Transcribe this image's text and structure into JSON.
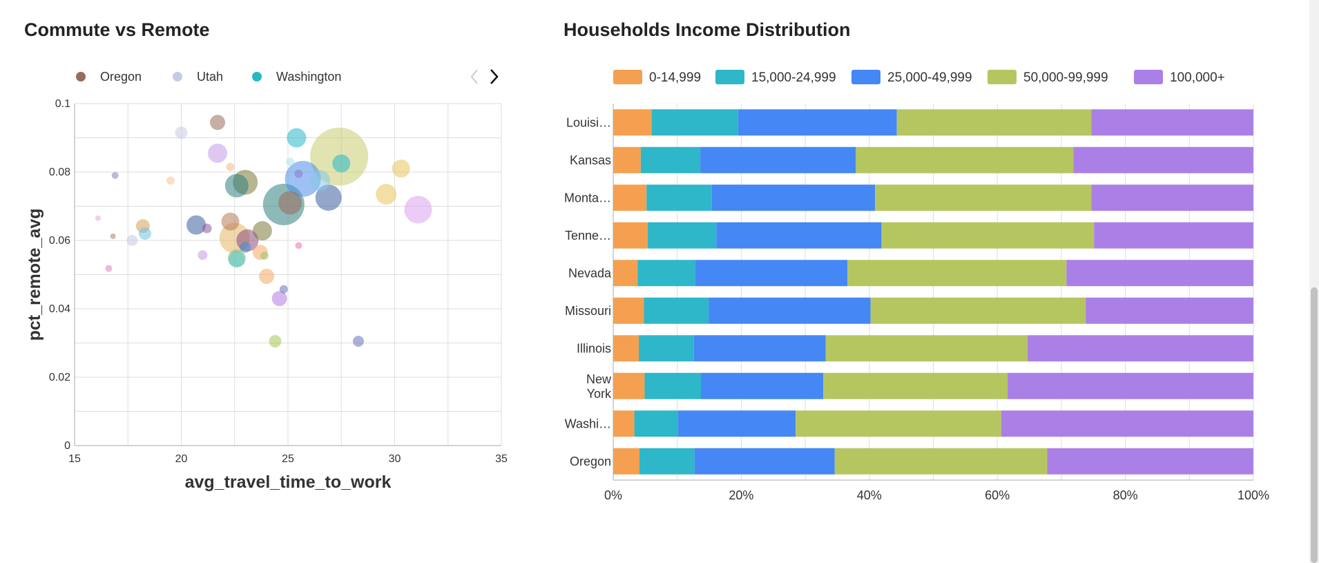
{
  "left_panel": {
    "title": "Commute vs Remote",
    "legend": [
      "Oregon",
      "Utah",
      "Washington"
    ],
    "legend_colors": [
      "#9a6b5a",
      "#c6cbe2",
      "#26b7c8"
    ],
    "legend_nav": {
      "prev_icon": "chevron-left-icon",
      "next_icon": "chevron-right-icon"
    }
  },
  "right_panel": {
    "title": "Households Income Distribution"
  },
  "chart_data": [
    {
      "type": "scatter",
      "title": "Commute vs Remote",
      "xlabel": "avg_travel_time_to_work",
      "ylabel": "pct_remote_avg",
      "xlim": [
        15,
        35
      ],
      "ylim": [
        0,
        0.1
      ],
      "x_ticks": [
        15,
        20,
        25,
        30,
        35
      ],
      "y_ticks": [
        0,
        0.02,
        0.04,
        0.06,
        0.08,
        0.1
      ],
      "y_tick_labels": [
        "0",
        "0.02",
        "0.04",
        "0.06",
        "0.08",
        "0.1"
      ],
      "x_tick_labels": [
        "15",
        "20",
        "25",
        "30",
        "35"
      ],
      "grid": true,
      "legend_placement": "top",
      "points": [
        {
          "x": 21.7,
          "y": 0.0945,
          "size": 11,
          "color": "#9a6b5a"
        },
        {
          "x": 20.0,
          "y": 0.0915,
          "size": 9,
          "color": "#c6cbe2"
        },
        {
          "x": 16.9,
          "y": 0.079,
          "size": 5,
          "color": "#8e7cc3"
        },
        {
          "x": 19.5,
          "y": 0.0775,
          "size": 6,
          "color": "#f4c78f"
        },
        {
          "x": 21.7,
          "y": 0.0855,
          "size": 14,
          "color": "#c39be8"
        },
        {
          "x": 22.3,
          "y": 0.0815,
          "size": 6,
          "color": "#f0b98a"
        },
        {
          "x": 22.6,
          "y": 0.076,
          "size": 17,
          "color": "#2f7f7f"
        },
        {
          "x": 23.0,
          "y": 0.077,
          "size": 18,
          "color": "#7c7a3a"
        },
        {
          "x": 25.4,
          "y": 0.09,
          "size": 14,
          "color": "#26b7c8"
        },
        {
          "x": 25.1,
          "y": 0.083,
          "size": 6,
          "color": "#aee3ee"
        },
        {
          "x": 25.5,
          "y": 0.0795,
          "size": 6,
          "color": "#8e7cc3"
        },
        {
          "x": 27.4,
          "y": 0.0845,
          "size": 42,
          "color": "#c9cd6f"
        },
        {
          "x": 25.7,
          "y": 0.078,
          "size": 26,
          "color": "#4c8ee8"
        },
        {
          "x": 26.5,
          "y": 0.0775,
          "size": 15,
          "color": "#86c6e8"
        },
        {
          "x": 27.5,
          "y": 0.0825,
          "size": 13,
          "color": "#26b7c8"
        },
        {
          "x": 30.3,
          "y": 0.081,
          "size": 13,
          "color": "#e8c45c"
        },
        {
          "x": 29.6,
          "y": 0.0735,
          "size": 15,
          "color": "#e8c45c"
        },
        {
          "x": 31.1,
          "y": 0.069,
          "size": 20,
          "color": "#d8a3ef"
        },
        {
          "x": 24.8,
          "y": 0.0705,
          "size": 30,
          "color": "#2f7f7f"
        },
        {
          "x": 25.1,
          "y": 0.071,
          "size": 17,
          "color": "#9a6b5a"
        },
        {
          "x": 26.9,
          "y": 0.0725,
          "size": 19,
          "color": "#3d5fa0"
        },
        {
          "x": 16.1,
          "y": 0.0665,
          "size": 4,
          "color": "#e8a6e0"
        },
        {
          "x": 16.8,
          "y": 0.0612,
          "size": 4,
          "color": "#b07a6a"
        },
        {
          "x": 17.7,
          "y": 0.06,
          "size": 8,
          "color": "#c6cbe2"
        },
        {
          "x": 18.2,
          "y": 0.0642,
          "size": 10,
          "color": "#d4a05a"
        },
        {
          "x": 18.3,
          "y": 0.062,
          "size": 9,
          "color": "#6ec3de"
        },
        {
          "x": 20.7,
          "y": 0.0645,
          "size": 14,
          "color": "#3d5fa0"
        },
        {
          "x": 21.2,
          "y": 0.0635,
          "size": 7,
          "color": "#8e5aa0"
        },
        {
          "x": 22.3,
          "y": 0.0655,
          "size": 13,
          "color": "#b87a5a"
        },
        {
          "x": 22.5,
          "y": 0.0607,
          "size": 22,
          "color": "#e3b864"
        },
        {
          "x": 23.1,
          "y": 0.06,
          "size": 16,
          "color": "#8e4a7c"
        },
        {
          "x": 23.0,
          "y": 0.058,
          "size": 8,
          "color": "#3d8ed0"
        },
        {
          "x": 23.8,
          "y": 0.0628,
          "size": 14,
          "color": "#7c7a3a"
        },
        {
          "x": 23.7,
          "y": 0.0565,
          "size": 11,
          "color": "#f2a962"
        },
        {
          "x": 23.9,
          "y": 0.0555,
          "size": 6,
          "color": "#9bc36e"
        },
        {
          "x": 21.0,
          "y": 0.0557,
          "size": 7,
          "color": "#c39be8"
        },
        {
          "x": 22.6,
          "y": 0.0548,
          "size": 13,
          "color": "#9bc36e"
        },
        {
          "x": 22.6,
          "y": 0.0545,
          "size": 12,
          "color": "#4ec4d2"
        },
        {
          "x": 25.5,
          "y": 0.0585,
          "size": 5,
          "color": "#ef6fb4"
        },
        {
          "x": 16.6,
          "y": 0.0518,
          "size": 5,
          "color": "#e87ac8"
        },
        {
          "x": 24.0,
          "y": 0.0495,
          "size": 11,
          "color": "#f2a962"
        },
        {
          "x": 24.8,
          "y": 0.0457,
          "size": 6,
          "color": "#6b6fbf"
        },
        {
          "x": 24.6,
          "y": 0.043,
          "size": 11,
          "color": "#b57ae0"
        },
        {
          "x": 24.4,
          "y": 0.0305,
          "size": 9,
          "color": "#a6c456"
        },
        {
          "x": 28.3,
          "y": 0.0305,
          "size": 8,
          "color": "#6b6fbf"
        }
      ]
    },
    {
      "type": "bar",
      "orientation": "horizontal",
      "stacked": "percent",
      "title": "Households Income Distribution",
      "categories": [
        "Louisi…",
        "Kansas",
        "Monta…",
        "Tenne…",
        "Nevada",
        "Missouri",
        "Illinois",
        "New York",
        "Washi…",
        "Oregon"
      ],
      "x_ticks": [
        "0%",
        "20%",
        "40%",
        "60%",
        "80%",
        "100%"
      ],
      "xlim": [
        0,
        100
      ],
      "grid": true,
      "legend_placement": "top",
      "series": [
        {
          "name": "0-14,999",
          "color": "#f4a050",
          "values": [
            6.0,
            4.3,
            5.2,
            5.4,
            3.8,
            4.8,
            4.0,
            4.9,
            3.3,
            4.1
          ]
        },
        {
          "name": "15,000-24,999",
          "color": "#2db7c9",
          "values": [
            13.5,
            9.3,
            10.2,
            10.7,
            9.0,
            10.1,
            8.6,
            8.8,
            6.8,
            8.6
          ]
        },
        {
          "name": "25,000-49,999",
          "color": "#4587f4",
          "values": [
            24.8,
            24.3,
            25.5,
            25.8,
            23.8,
            25.3,
            20.6,
            19.1,
            18.4,
            21.9
          ]
        },
        {
          "name": "50,000-99,999",
          "color": "#b5c661",
          "values": [
            30.4,
            34.0,
            33.8,
            33.2,
            34.2,
            33.6,
            31.5,
            28.8,
            32.1,
            33.2
          ]
        },
        {
          "name": "100,000+",
          "color": "#ab80e6",
          "values": [
            25.3,
            28.1,
            25.3,
            24.9,
            29.2,
            26.2,
            35.3,
            38.4,
            39.4,
            32.2
          ]
        }
      ]
    }
  ]
}
